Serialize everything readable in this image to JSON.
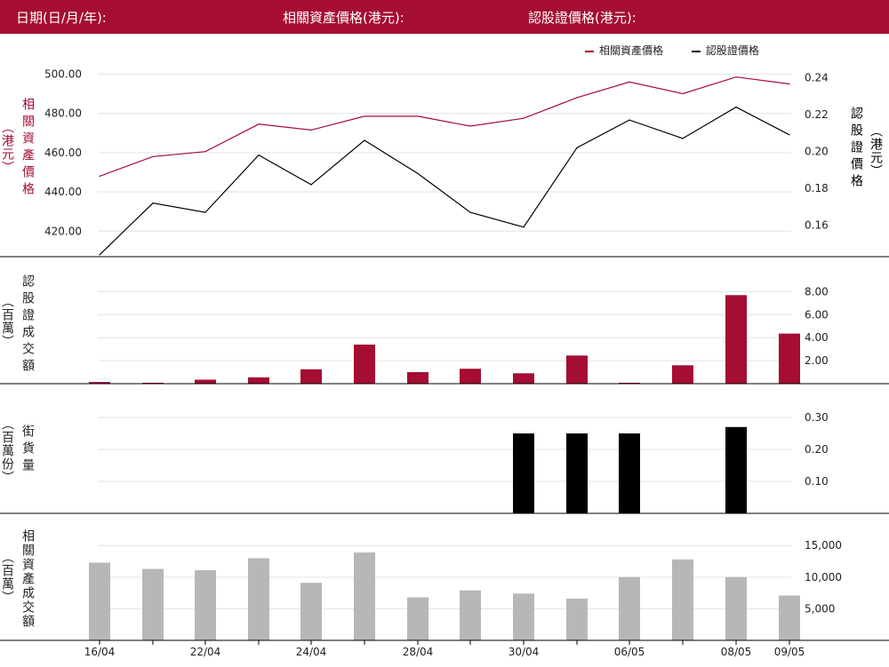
{
  "header": {
    "date_label": "日期(日/月/年):",
    "asset_price_label": "相關資產價格(港元):",
    "warrant_price_label": "認股證價格(港元):"
  },
  "colors": {
    "header_bg": "#a50d32",
    "asset": "#a50d32",
    "warrant": "#000000",
    "outstanding": "#000000",
    "asset_turnover": "#b7b7b7"
  },
  "legend": {
    "asset": "相關資產價格",
    "warrant": "認股證價格"
  },
  "axis_titles": {
    "price_left": "相關資產價格",
    "price_left_unit": "（港元）",
    "price_right": "認股證價格",
    "price_right_unit": "（港元）",
    "warrant_turnover": "認股證成交額",
    "warrant_turnover_unit": "（百萬）",
    "outstanding": "街貨量",
    "outstanding_unit": "（百萬份）",
    "asset_turnover": "相關資產成交額",
    "asset_turnover_unit": "（百萬）"
  },
  "chart_data": {
    "type": "line",
    "x_labels": [
      "16/04",
      "",
      "22/04",
      "",
      "24/04",
      "",
      "28/04",
      "",
      "30/04",
      "",
      "06/05",
      "",
      "08/05",
      "09/05"
    ],
    "panels": [
      {
        "id": "price",
        "type": "line",
        "left_axis": {
          "ticks": [
            "500.00",
            "480.00",
            "460.00",
            "440.00",
            "420.00"
          ],
          "range": [
            407,
            502
          ]
        },
        "right_axis": {
          "ticks": [
            "0.24",
            "0.22",
            "0.20",
            "0.18",
            "0.16"
          ],
          "range": [
            0.143,
            0.244
          ]
        },
        "series": [
          {
            "name": "相關資產價格",
            "axis": "left",
            "values": [
              448,
              458,
              460.5,
              474.5,
              471.5,
              478.5,
              478.5,
              473.5,
              477.5,
              488,
              496,
              490,
              498.5,
              495
            ]
          },
          {
            "name": "認股證價格",
            "axis": "right",
            "values": [
              0.144,
              0.172,
              0.167,
              0.198,
              0.182,
              0.206,
              0.188,
              0.167,
              0.159,
              0.202,
              0.217,
              0.207,
              0.224,
              0.209
            ]
          }
        ]
      },
      {
        "id": "warrant_turnover",
        "type": "bar",
        "right_axis": {
          "ticks": [
            "8.00",
            "6.00",
            "4.00",
            "2.00"
          ],
          "range": [
            0,
            8.8
          ]
        },
        "values": [
          0.15,
          0.08,
          0.35,
          0.55,
          1.25,
          3.4,
          1.0,
          1.3,
          0.9,
          2.45,
          0.08,
          1.6,
          7.7,
          4.35
        ]
      },
      {
        "id": "outstanding",
        "type": "bar",
        "right_axis": {
          "ticks": [
            "0.30",
            "0.20",
            "0.10"
          ],
          "range": [
            0,
            0.3
          ]
        },
        "values": [
          0,
          0,
          0,
          0,
          0,
          0,
          0,
          0,
          0.25,
          0.25,
          0.25,
          0,
          0.27,
          0
        ]
      },
      {
        "id": "asset_turnover",
        "type": "bar",
        "right_axis": {
          "ticks": [
            "15,000",
            "10,000",
            "5,000"
          ],
          "range": [
            0,
            17000
          ]
        },
        "values": [
          12300,
          11300,
          11100,
          13000,
          9100,
          13900,
          6800,
          7900,
          7400,
          6600,
          10000,
          12800,
          10000,
          7100
        ]
      }
    ]
  }
}
